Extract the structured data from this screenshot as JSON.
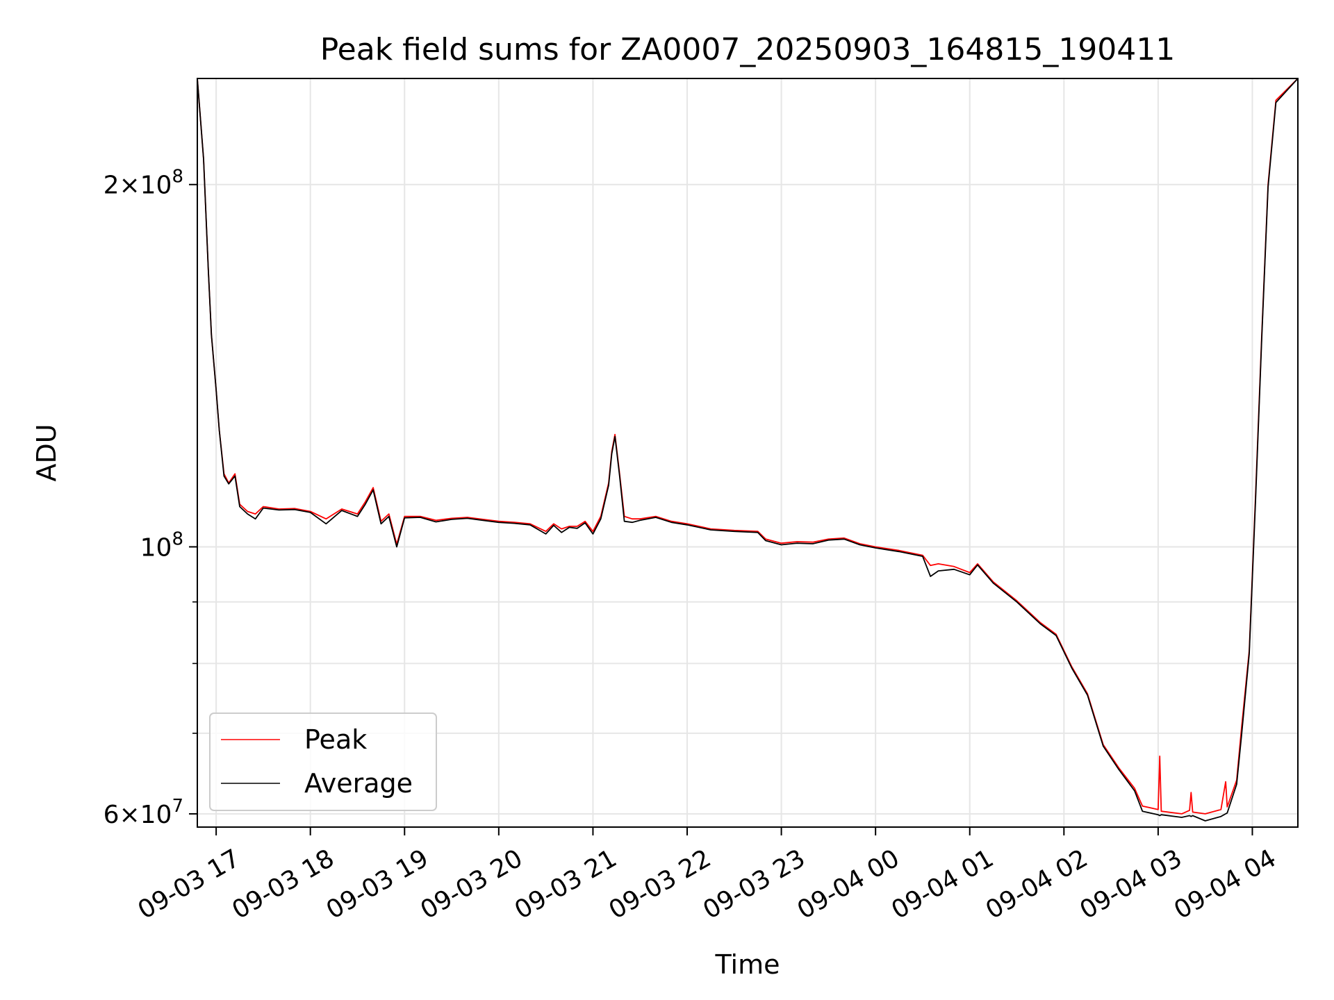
{
  "chart_data": {
    "type": "line",
    "title": "Peak field sums for ZA0007_20250903_164815_190411",
    "xlabel": "Time",
    "ylabel": "ADU",
    "y_scale": "log",
    "grid": true,
    "legend_position": "lower-left",
    "xlim": [
      "2025-09-03 16:48",
      "2025-09-04 04:29"
    ],
    "ylim": [
      58500000,
      245000000
    ],
    "x_ticks": [
      "09-03 17",
      "09-03 18",
      "09-03 19",
      "09-03 20",
      "09-03 21",
      "09-03 22",
      "09-03 23",
      "09-04 00",
      "09-04 01",
      "09-04 02",
      "09-04 03",
      "09-04 04"
    ],
    "y_ticks": [
      {
        "value": 200000000,
        "mant": "2",
        "exp": "8"
      },
      {
        "value": 100000000,
        "mant": "",
        "exp": "8"
      },
      {
        "value": 60000000,
        "mant": "6",
        "exp": "7"
      }
    ],
    "y_minor_ticks": [
      70000000,
      80000000,
      90000000
    ],
    "series": [
      {
        "name": "Peak",
        "color": "#ff0000",
        "points": [
          [
            "2025-09-03 16:48",
            245000000
          ],
          [
            "2025-09-03 16:52",
            210000000
          ],
          [
            "2025-09-03 16:55",
            170000000
          ],
          [
            "2025-09-03 16:57",
            150000000
          ],
          [
            "2025-09-03 17:00",
            135000000
          ],
          [
            "2025-09-03 17:02",
            125000000
          ],
          [
            "2025-09-03 17:05",
            115000000
          ],
          [
            "2025-09-03 17:08",
            113000000
          ],
          [
            "2025-09-03 17:12",
            115000000
          ],
          [
            "2025-09-03 17:15",
            108500000
          ],
          [
            "2025-09-03 17:20",
            107000000
          ],
          [
            "2025-09-03 17:25",
            106500000
          ],
          [
            "2025-09-03 17:30",
            108000000
          ],
          [
            "2025-09-03 17:40",
            107500000
          ],
          [
            "2025-09-03 17:50",
            107600000
          ],
          [
            "2025-09-03 18:00",
            107000000
          ],
          [
            "2025-09-03 18:10",
            105500000
          ],
          [
            "2025-09-03 18:20",
            107500000
          ],
          [
            "2025-09-03 18:30",
            106500000
          ],
          [
            "2025-09-03 18:35",
            109000000
          ],
          [
            "2025-09-03 18:40",
            112000000
          ],
          [
            "2025-09-03 18:45",
            105000000
          ],
          [
            "2025-09-03 18:50",
            106500000
          ],
          [
            "2025-09-03 18:55",
            100500000
          ],
          [
            "2025-09-03 19:00",
            106000000
          ],
          [
            "2025-09-03 19:10",
            106000000
          ],
          [
            "2025-09-03 19:20",
            105200000
          ],
          [
            "2025-09-03 19:30",
            105600000
          ],
          [
            "2025-09-03 19:40",
            105800000
          ],
          [
            "2025-09-03 19:50",
            105400000
          ],
          [
            "2025-09-03 20:00",
            105000000
          ],
          [
            "2025-09-03 20:10",
            104800000
          ],
          [
            "2025-09-03 20:20",
            104500000
          ],
          [
            "2025-09-03 20:30",
            103000000
          ],
          [
            "2025-09-03 20:35",
            104500000
          ],
          [
            "2025-09-03 20:40",
            103500000
          ],
          [
            "2025-09-03 20:45",
            104000000
          ],
          [
            "2025-09-03 20:50",
            104000000
          ],
          [
            "2025-09-03 20:55",
            105000000
          ],
          [
            "2025-09-03 21:00",
            103000000
          ],
          [
            "2025-09-03 21:05",
            106000000
          ],
          [
            "2025-09-03 21:10",
            113000000
          ],
          [
            "2025-09-03 21:12",
            120000000
          ],
          [
            "2025-09-03 21:14",
            124000000
          ],
          [
            "2025-09-03 21:17",
            115000000
          ],
          [
            "2025-09-03 21:20",
            106000000
          ],
          [
            "2025-09-03 21:25",
            105500000
          ],
          [
            "2025-09-03 21:30",
            105500000
          ],
          [
            "2025-09-03 21:40",
            106000000
          ],
          [
            "2025-09-03 21:50",
            105000000
          ],
          [
            "2025-09-03 22:00",
            104500000
          ],
          [
            "2025-09-03 22:15",
            103500000
          ],
          [
            "2025-09-03 22:30",
            103200000
          ],
          [
            "2025-09-03 22:45",
            103000000
          ],
          [
            "2025-09-03 22:50",
            101500000
          ],
          [
            "2025-09-03 23:00",
            100700000
          ],
          [
            "2025-09-03 23:10",
            101000000
          ],
          [
            "2025-09-03 23:20",
            100900000
          ],
          [
            "2025-09-03 23:30",
            101500000
          ],
          [
            "2025-09-03 23:40",
            101700000
          ],
          [
            "2025-09-03 23:50",
            100600000
          ],
          [
            "2025-09-04 00:00",
            100000000
          ],
          [
            "2025-09-04 00:15",
            99300000
          ],
          [
            "2025-09-04 00:30",
            98400000
          ],
          [
            "2025-09-04 00:35",
            96500000
          ],
          [
            "2025-09-04 00:40",
            96800000
          ],
          [
            "2025-09-04 00:50",
            96300000
          ],
          [
            "2025-09-04 01:00",
            95200000
          ],
          [
            "2025-09-04 01:05",
            96800000
          ],
          [
            "2025-09-04 01:15",
            93500000
          ],
          [
            "2025-09-04 01:30",
            90200000
          ],
          [
            "2025-09-04 01:45",
            86500000
          ],
          [
            "2025-09-04 01:55",
            84600000
          ],
          [
            "2025-09-04 02:05",
            79500000
          ],
          [
            "2025-09-04 02:15",
            75500000
          ],
          [
            "2025-09-04 02:25",
            68500000
          ],
          [
            "2025-09-04 02:35",
            65500000
          ],
          [
            "2025-09-04 02:45",
            63000000
          ],
          [
            "2025-09-04 02:50",
            60900000
          ],
          [
            "2025-09-04 03:00",
            60500000
          ],
          [
            "2025-09-04 03:01",
            67000000
          ],
          [
            "2025-09-04 03:02",
            60300000
          ],
          [
            "2025-09-04 03:15",
            60000000
          ],
          [
            "2025-09-04 03:20",
            60400000
          ],
          [
            "2025-09-04 03:21",
            62500000
          ],
          [
            "2025-09-04 03:22",
            60200000
          ],
          [
            "2025-09-04 03:30",
            60000000
          ],
          [
            "2025-09-04 03:40",
            60500000
          ],
          [
            "2025-09-04 03:43",
            63800000
          ],
          [
            "2025-09-04 03:44",
            60800000
          ],
          [
            "2025-09-04 03:50",
            64000000
          ],
          [
            "2025-09-04 03:53",
            70500000
          ],
          [
            "2025-09-04 03:58",
            82000000
          ],
          [
            "2025-09-04 04:02",
            110000000
          ],
          [
            "2025-09-04 04:06",
            150000000
          ],
          [
            "2025-09-04 04:10",
            200000000
          ],
          [
            "2025-09-04 04:15",
            235000000
          ],
          [
            "2025-09-04 04:29",
            245000000
          ]
        ]
      },
      {
        "name": "Average",
        "color": "#000000",
        "points": [
          [
            "2025-09-03 16:48",
            245000000
          ],
          [
            "2025-09-03 16:52",
            210000000
          ],
          [
            "2025-09-03 16:55",
            170000000
          ],
          [
            "2025-09-03 16:57",
            150000000
          ],
          [
            "2025-09-03 17:00",
            135000000
          ],
          [
            "2025-09-03 17:02",
            125000000
          ],
          [
            "2025-09-03 17:05",
            114500000
          ],
          [
            "2025-09-03 17:08",
            112800000
          ],
          [
            "2025-09-03 17:12",
            114500000
          ],
          [
            "2025-09-03 17:15",
            108000000
          ],
          [
            "2025-09-03 17:20",
            106500000
          ],
          [
            "2025-09-03 17:25",
            105500000
          ],
          [
            "2025-09-03 17:30",
            107700000
          ],
          [
            "2025-09-03 17:40",
            107300000
          ],
          [
            "2025-09-03 17:50",
            107400000
          ],
          [
            "2025-09-03 18:00",
            106800000
          ],
          [
            "2025-09-03 18:10",
            104500000
          ],
          [
            "2025-09-03 18:20",
            107200000
          ],
          [
            "2025-09-03 18:30",
            106000000
          ],
          [
            "2025-09-03 18:35",
            108500000
          ],
          [
            "2025-09-03 18:40",
            111500000
          ],
          [
            "2025-09-03 18:45",
            104500000
          ],
          [
            "2025-09-03 18:50",
            106000000
          ],
          [
            "2025-09-03 18:55",
            100000000
          ],
          [
            "2025-09-03 19:00",
            105700000
          ],
          [
            "2025-09-03 19:10",
            105800000
          ],
          [
            "2025-09-03 19:20",
            104900000
          ],
          [
            "2025-09-03 19:30",
            105400000
          ],
          [
            "2025-09-03 19:40",
            105600000
          ],
          [
            "2025-09-03 19:50",
            105200000
          ],
          [
            "2025-09-03 20:00",
            104800000
          ],
          [
            "2025-09-03 20:10",
            104600000
          ],
          [
            "2025-09-03 20:20",
            104300000
          ],
          [
            "2025-09-03 20:30",
            102500000
          ],
          [
            "2025-09-03 20:35",
            104200000
          ],
          [
            "2025-09-03 20:40",
            102800000
          ],
          [
            "2025-09-03 20:45",
            103800000
          ],
          [
            "2025-09-03 20:50",
            103600000
          ],
          [
            "2025-09-03 20:55",
            104700000
          ],
          [
            "2025-09-03 21:00",
            102500000
          ],
          [
            "2025-09-03 21:05",
            105500000
          ],
          [
            "2025-09-03 21:10",
            112500000
          ],
          [
            "2025-09-03 21:12",
            119500000
          ],
          [
            "2025-09-03 21:14",
            123500000
          ],
          [
            "2025-09-03 21:17",
            114500000
          ],
          [
            "2025-09-03 21:20",
            105000000
          ],
          [
            "2025-09-03 21:25",
            104800000
          ],
          [
            "2025-09-03 21:30",
            105200000
          ],
          [
            "2025-09-03 21:40",
            105800000
          ],
          [
            "2025-09-03 21:50",
            104800000
          ],
          [
            "2025-09-03 22:00",
            104300000
          ],
          [
            "2025-09-03 22:15",
            103300000
          ],
          [
            "2025-09-03 22:30",
            103000000
          ],
          [
            "2025-09-03 22:45",
            102800000
          ],
          [
            "2025-09-03 22:50",
            101200000
          ],
          [
            "2025-09-03 23:00",
            100400000
          ],
          [
            "2025-09-03 23:10",
            100700000
          ],
          [
            "2025-09-03 23:20",
            100600000
          ],
          [
            "2025-09-03 23:30",
            101300000
          ],
          [
            "2025-09-03 23:40",
            101500000
          ],
          [
            "2025-09-03 23:50",
            100400000
          ],
          [
            "2025-09-04 00:00",
            99800000
          ],
          [
            "2025-09-04 00:15",
            99100000
          ],
          [
            "2025-09-04 00:30",
            98200000
          ],
          [
            "2025-09-04 00:35",
            94500000
          ],
          [
            "2025-09-04 00:40",
            95500000
          ],
          [
            "2025-09-04 00:50",
            95800000
          ],
          [
            "2025-09-04 01:00",
            94800000
          ],
          [
            "2025-09-04 01:05",
            96600000
          ],
          [
            "2025-09-04 01:15",
            93300000
          ],
          [
            "2025-09-04 01:30",
            90000000
          ],
          [
            "2025-09-04 01:45",
            86300000
          ],
          [
            "2025-09-04 01:55",
            84400000
          ],
          [
            "2025-09-04 02:05",
            79300000
          ],
          [
            "2025-09-04 02:15",
            75300000
          ],
          [
            "2025-09-04 02:25",
            68300000
          ],
          [
            "2025-09-04 02:35",
            65300000
          ],
          [
            "2025-09-04 02:45",
            62700000
          ],
          [
            "2025-09-04 02:50",
            60300000
          ],
          [
            "2025-09-04 03:00",
            59900000
          ],
          [
            "2025-09-04 03:01",
            59800000
          ],
          [
            "2025-09-04 03:02",
            59900000
          ],
          [
            "2025-09-04 03:15",
            59600000
          ],
          [
            "2025-09-04 03:20",
            59800000
          ],
          [
            "2025-09-04 03:21",
            59700000
          ],
          [
            "2025-09-04 03:22",
            59800000
          ],
          [
            "2025-09-04 03:30",
            59200000
          ],
          [
            "2025-09-04 03:40",
            59700000
          ],
          [
            "2025-09-04 03:43",
            60000000
          ],
          [
            "2025-09-04 03:44",
            60100000
          ],
          [
            "2025-09-04 03:50",
            63500000
          ],
          [
            "2025-09-04 03:53",
            69500000
          ],
          [
            "2025-09-04 03:58",
            81500000
          ],
          [
            "2025-09-04 04:02",
            109000000
          ],
          [
            "2025-09-04 04:06",
            149000000
          ],
          [
            "2025-09-04 04:10",
            199000000
          ],
          [
            "2025-09-04 04:15",
            234000000
          ],
          [
            "2025-09-04 04:29",
            245000000
          ]
        ]
      }
    ]
  }
}
